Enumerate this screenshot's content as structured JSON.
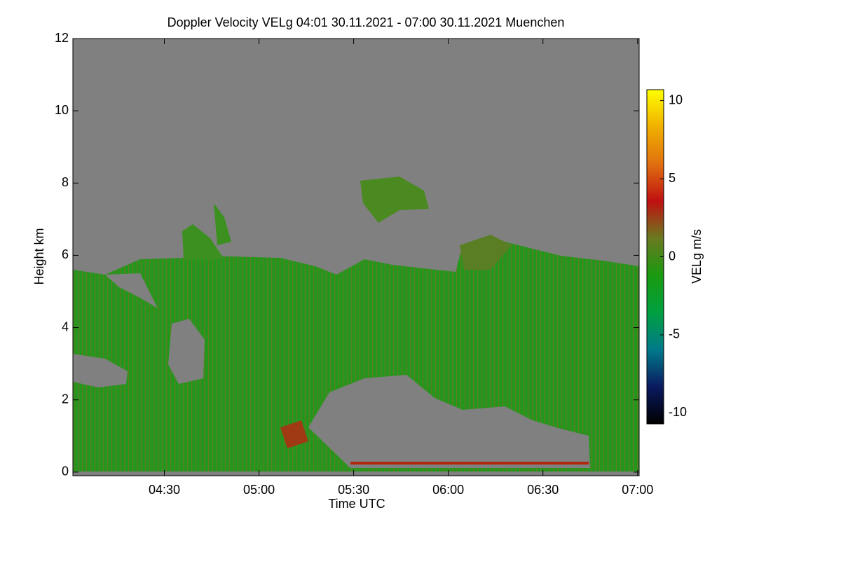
{
  "chart_data": {
    "type": "heatmap",
    "title": "Doppler Velocity VELg   04:01 30.11.2021 - 07:00 30.11.2021 Muenchen",
    "x_label": "Time UTC",
    "y_label": "Height km",
    "colorbar_label": "VELg m/s",
    "xlim": [
      241,
      420.5
    ],
    "xticks": [
      {
        "value": 270,
        "label": "04:30"
      },
      {
        "value": 300,
        "label": "05:00"
      },
      {
        "value": 330,
        "label": "05:30"
      },
      {
        "value": 360,
        "label": "06:00"
      },
      {
        "value": 390,
        "label": "06:30"
      },
      {
        "value": 420,
        "label": "07:00"
      }
    ],
    "ylim": [
      -0.1,
      12
    ],
    "yticks": [
      0,
      2,
      4,
      6,
      8,
      10,
      12
    ],
    "clim": [
      -10.7,
      10.7
    ],
    "cticks": [
      -10,
      -5,
      0,
      5,
      10
    ],
    "colormap": [
      "#000000",
      "#0a1a60",
      "#007a8a",
      "#00a040",
      "#1a9a10",
      "#6a7a20",
      "#c01010",
      "#e07010",
      "#f0b000",
      "#ffff00"
    ]
  }
}
